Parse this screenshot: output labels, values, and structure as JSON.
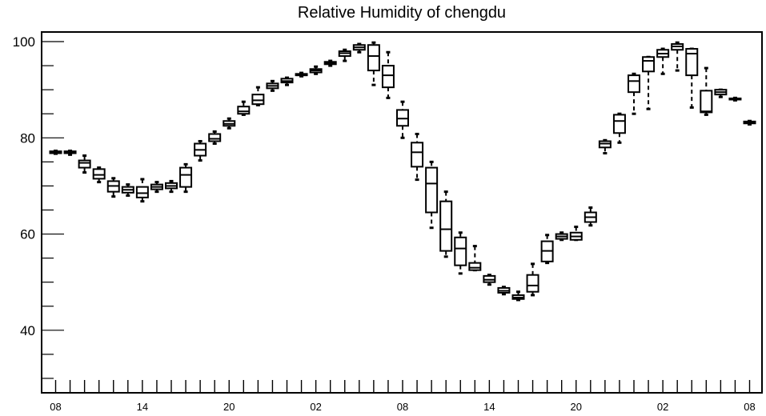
{
  "chart_data": {
    "type": "boxplot",
    "title": "Relative Humidity of chengdu",
    "xlabel": "",
    "ylabel": "",
    "ylim": [
      27,
      102
    ],
    "y_ticks": [
      40,
      60,
      80,
      100
    ],
    "x_tick_labels": [
      "08",
      "14",
      "20",
      "02",
      "08",
      "14",
      "20",
      "02",
      "08"
    ],
    "x_ticks_at_index": [
      0,
      6,
      12,
      18,
      24,
      30,
      36,
      42,
      48
    ],
    "grid": false,
    "legend": "none",
    "boxes": [
      {
        "index": 0,
        "min": 76.7,
        "q1": 76.8,
        "median": 77.0,
        "q3": 77.2,
        "max": 77.3
      },
      {
        "index": 1,
        "min": 76.5,
        "q1": 76.8,
        "median": 77.0,
        "q3": 77.2,
        "max": 77.3
      },
      {
        "index": 2,
        "min": 72.8,
        "q1": 73.8,
        "median": 74.8,
        "q3": 75.3,
        "max": 76.3
      },
      {
        "index": 3,
        "min": 70.8,
        "q1": 71.5,
        "median": 72.3,
        "q3": 73.5,
        "max": 73.8
      },
      {
        "index": 4,
        "min": 67.8,
        "q1": 68.8,
        "median": 70.0,
        "q3": 71.0,
        "max": 71.6
      },
      {
        "index": 5,
        "min": 68.0,
        "q1": 68.6,
        "median": 69.2,
        "q3": 69.8,
        "max": 70.3
      },
      {
        "index": 6,
        "min": 66.8,
        "q1": 67.6,
        "median": 68.5,
        "q3": 69.8,
        "max": 71.4
      },
      {
        "index": 7,
        "min": 68.8,
        "q1": 69.3,
        "median": 69.8,
        "q3": 70.3,
        "max": 70.8
      },
      {
        "index": 8,
        "min": 68.8,
        "q1": 69.5,
        "median": 70.0,
        "q3": 70.6,
        "max": 71.0
      },
      {
        "index": 9,
        "min": 68.8,
        "q1": 69.8,
        "median": 72.3,
        "q3": 73.8,
        "max": 74.5
      },
      {
        "index": 10,
        "min": 75.3,
        "q1": 76.3,
        "median": 77.5,
        "q3": 78.8,
        "max": 79.3
      },
      {
        "index": 11,
        "min": 78.8,
        "q1": 79.3,
        "median": 79.8,
        "q3": 80.8,
        "max": 81.3
      },
      {
        "index": 12,
        "min": 82.0,
        "q1": 82.5,
        "median": 82.9,
        "q3": 83.5,
        "max": 84.0
      },
      {
        "index": 13,
        "min": 84.8,
        "q1": 85.0,
        "median": 85.5,
        "q3": 86.5,
        "max": 87.5
      },
      {
        "index": 14,
        "min": 86.8,
        "q1": 87.0,
        "median": 87.8,
        "q3": 89.0,
        "max": 90.5
      },
      {
        "index": 15,
        "min": 89.8,
        "q1": 90.3,
        "median": 90.8,
        "q3": 91.3,
        "max": 91.8
      },
      {
        "index": 16,
        "min": 91.0,
        "q1": 91.5,
        "median": 91.8,
        "q3": 92.3,
        "max": 92.5
      },
      {
        "index": 17,
        "min": 92.8,
        "q1": 93.0,
        "median": 93.0,
        "q3": 93.3,
        "max": 93.5
      },
      {
        "index": 18,
        "min": 93.3,
        "q1": 93.6,
        "median": 94.0,
        "q3": 94.3,
        "max": 94.8
      },
      {
        "index": 19,
        "min": 95.0,
        "q1": 95.3,
        "median": 95.6,
        "q3": 95.8,
        "max": 96.0
      },
      {
        "index": 20,
        "min": 96.0,
        "q1": 97.0,
        "median": 97.6,
        "q3": 98.0,
        "max": 98.3
      },
      {
        "index": 21,
        "min": 97.8,
        "q1": 98.3,
        "median": 98.8,
        "q3": 99.3,
        "max": 99.5
      },
      {
        "index": 22,
        "min": 91.0,
        "q1": 94.0,
        "median": 97.0,
        "q3": 99.3,
        "max": 99.8
      },
      {
        "index": 23,
        "min": 88.3,
        "q1": 90.5,
        "median": 93.0,
        "q3": 95.0,
        "max": 97.8
      },
      {
        "index": 24,
        "min": 80.0,
        "q1": 82.5,
        "median": 84.0,
        "q3": 85.8,
        "max": 87.5
      },
      {
        "index": 25,
        "min": 71.3,
        "q1": 74.0,
        "median": 77.0,
        "q3": 79.0,
        "max": 80.8
      },
      {
        "index": 26,
        "min": 61.3,
        "q1": 64.5,
        "median": 70.5,
        "q3": 73.8,
        "max": 75.0
      },
      {
        "index": 27,
        "min": 55.3,
        "q1": 56.5,
        "median": 61.0,
        "q3": 66.8,
        "max": 68.8
      },
      {
        "index": 28,
        "min": 51.8,
        "q1": 53.5,
        "median": 57.0,
        "q3": 59.3,
        "max": 60.3
      },
      {
        "index": 29,
        "min": 52.5,
        "q1": 52.5,
        "median": 53.0,
        "q3": 54.0,
        "max": 57.5
      },
      {
        "index": 30,
        "min": 49.5,
        "q1": 50.0,
        "median": 50.5,
        "q3": 51.3,
        "max": 51.5
      },
      {
        "index": 31,
        "min": 47.5,
        "q1": 47.8,
        "median": 48.2,
        "q3": 48.8,
        "max": 49.0
      },
      {
        "index": 32,
        "min": 46.3,
        "q1": 46.5,
        "median": 46.8,
        "q3": 47.3,
        "max": 48.0
      },
      {
        "index": 33,
        "min": 47.3,
        "q1": 48.0,
        "median": 49.3,
        "q3": 51.5,
        "max": 53.8
      },
      {
        "index": 34,
        "min": 54.0,
        "q1": 54.3,
        "median": 56.5,
        "q3": 58.5,
        "max": 59.8
      },
      {
        "index": 35,
        "min": 58.8,
        "q1": 59.0,
        "median": 59.5,
        "q3": 60.0,
        "max": 60.3
      },
      {
        "index": 36,
        "min": 58.8,
        "q1": 58.8,
        "median": 59.5,
        "q3": 60.3,
        "max": 61.5
      },
      {
        "index": 37,
        "min": 61.8,
        "q1": 62.5,
        "median": 63.5,
        "q3": 64.5,
        "max": 65.5
      },
      {
        "index": 38,
        "min": 76.8,
        "q1": 78.0,
        "median": 78.8,
        "q3": 79.3,
        "max": 79.5
      },
      {
        "index": 39,
        "min": 79.0,
        "q1": 81.0,
        "median": 83.5,
        "q3": 84.8,
        "max": 85.0
      },
      {
        "index": 40,
        "min": 85.0,
        "q1": 89.5,
        "median": 91.8,
        "q3": 93.0,
        "max": 93.3
      },
      {
        "index": 41,
        "min": 86.0,
        "q1": 93.8,
        "median": 96.0,
        "q3": 96.8,
        "max": 96.8
      },
      {
        "index": 42,
        "min": 93.3,
        "q1": 96.8,
        "median": 97.5,
        "q3": 98.3,
        "max": 98.5
      },
      {
        "index": 43,
        "min": 94.0,
        "q1": 98.3,
        "median": 99.0,
        "q3": 99.5,
        "max": 99.8
      },
      {
        "index": 44,
        "min": 86.3,
        "q1": 93.0,
        "median": 97.5,
        "q3": 98.5,
        "max": 98.5
      },
      {
        "index": 45,
        "min": 84.8,
        "q1": 85.3,
        "median": 85.5,
        "q3": 89.8,
        "max": 94.5
      },
      {
        "index": 46,
        "min": 88.5,
        "q1": 89.0,
        "median": 89.5,
        "q3": 90.0,
        "max": 90.0
      },
      {
        "index": 47,
        "min": 87.8,
        "q1": 88.0,
        "median": 88.0,
        "q3": 88.2,
        "max": 88.3
      },
      {
        "index": 48,
        "min": 82.8,
        "q1": 83.0,
        "median": 83.2,
        "q3": 83.4,
        "max": 83.5
      }
    ]
  }
}
